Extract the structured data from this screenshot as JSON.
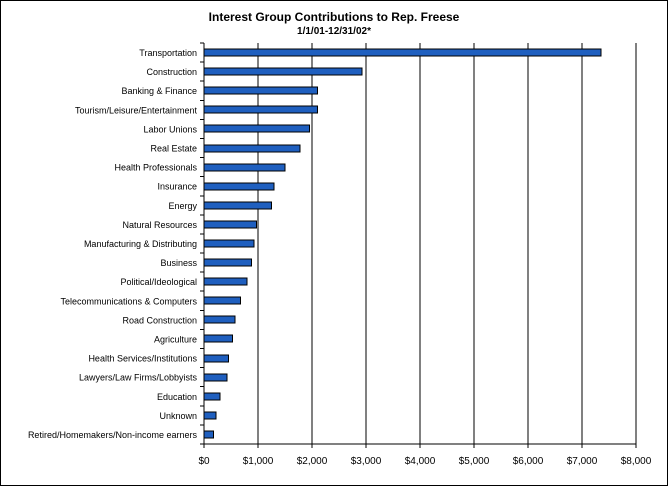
{
  "chart_data": {
    "type": "bar",
    "orientation": "horizontal",
    "title": "Interest Group Contributions to Rep. Freese",
    "subtitle": "1/1/01-12/31/02*",
    "xlabel": "",
    "ylabel": "",
    "xlim": [
      0,
      8000
    ],
    "ticks": [
      0,
      1000,
      2000,
      3000,
      4000,
      5000,
      6000,
      7000,
      8000
    ],
    "tick_labels": [
      "$0",
      "$1,000",
      "$2,000",
      "$3,000",
      "$4,000",
      "$5,000",
      "$6,000",
      "$7,000",
      "$8,000"
    ],
    "grid": "vertical",
    "legend": "none",
    "bar_color": "#1F5FBF",
    "categories": [
      "Transportation",
      "Construction",
      "Banking & Finance",
      "Tourism/Leisure/Entertainment",
      "Labor Unions",
      "Real Estate",
      "Health Professionals",
      "Insurance",
      "Energy",
      "Natural Resources",
      "Manufacturing & Distributing",
      "Business",
      "Political/Ideological",
      "Telecommunications & Computers",
      "Road Construction",
      "Agriculture",
      "Health Services/Institutions",
      "Lawyers/Law Firms/Lobbyists",
      "Education",
      "Unknown",
      "Retired/Homemakers/Non-income earners"
    ],
    "values": [
      7350,
      2925,
      2100,
      2100,
      1950,
      1775,
      1500,
      1300,
      1250,
      975,
      925,
      875,
      800,
      675,
      575,
      525,
      450,
      425,
      300,
      225,
      175
    ]
  }
}
